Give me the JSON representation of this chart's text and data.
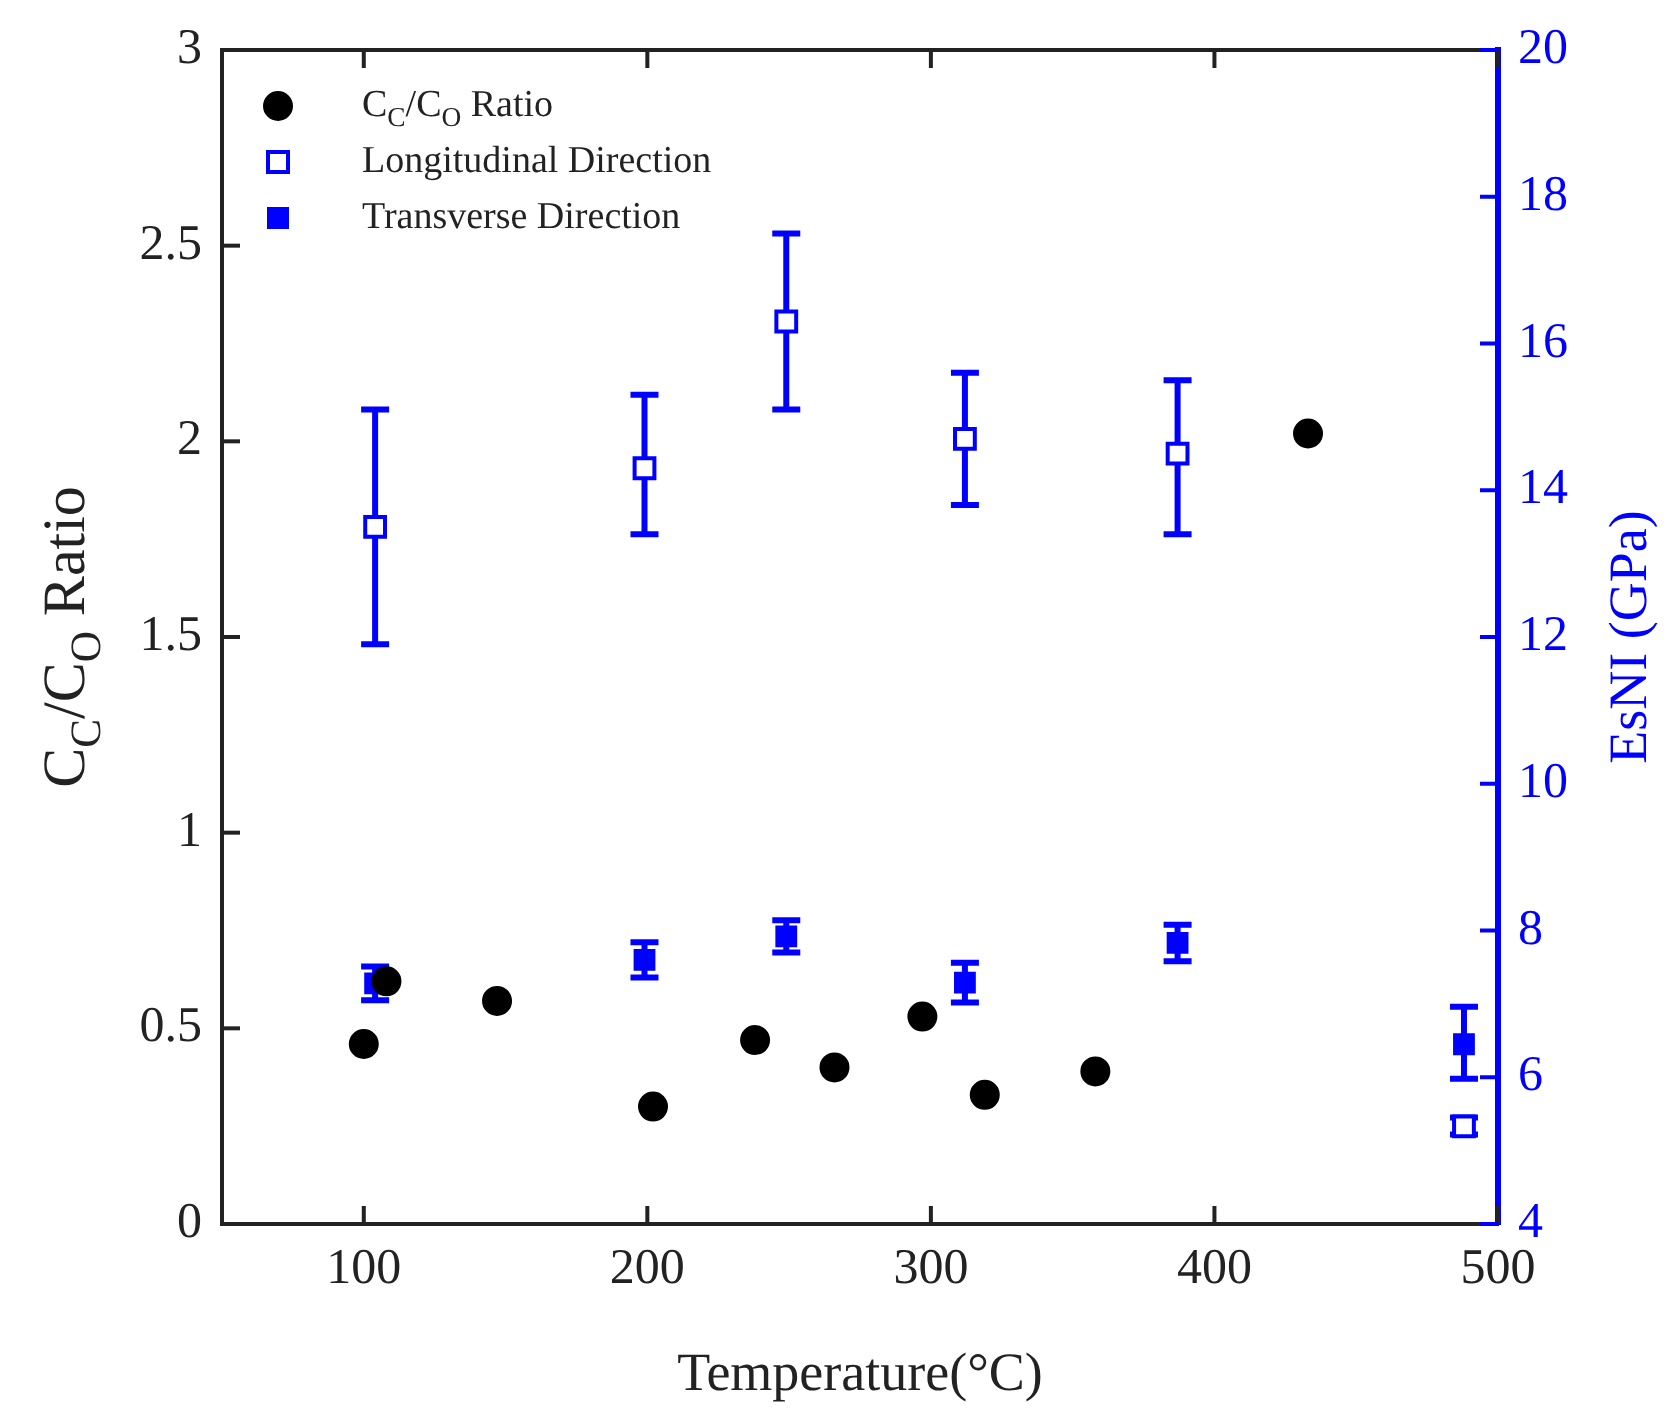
{
  "chart_data": {
    "type": "scatter",
    "xlabel": "Temperature(°C)",
    "ylabel": "C$_{C}$/C$_{O}$ Ratio",
    "y2label": "EsNI (GPa)",
    "xlim": [
      50,
      500
    ],
    "xticks": [
      100,
      200,
      300,
      400,
      500
    ],
    "ylim": [
      0,
      3
    ],
    "yticks": [
      0,
      0.5,
      1,
      1.5,
      2,
      2.5,
      3
    ],
    "y2lim": [
      4,
      20
    ],
    "y2ticks": [
      4,
      6,
      8,
      10,
      12,
      14,
      16,
      18,
      20
    ],
    "legend": "top left",
    "grid": false,
    "series": [
      {
        "name": "C$_{C}$/C$_{O}$ Ratio",
        "color": "#000000",
        "marker": "circle",
        "x": [
          100,
          108,
          147,
          202,
          238,
          266,
          297,
          319,
          358,
          433
        ],
        "values": [
          0.46,
          0.62,
          0.57,
          0.3,
          0.47,
          0.4,
          0.53,
          0.33,
          0.39,
          2.02
        ]
      },
      {
        "name": "Longitudinal Direction",
        "color": "#0000ff",
        "marker": "square",
        "axis": "y2",
        "x": [
          104,
          199,
          249,
          312,
          387,
          488
        ],
        "values": [
          13.5,
          14.3,
          16.3,
          14.7,
          14.5,
          5.33
        ],
        "errors": [
          [
            11.9,
            15.1
          ],
          [
            13.4,
            15.3
          ],
          [
            15.1,
            17.5
          ],
          [
            13.8,
            15.6
          ],
          [
            13.4,
            15.5
          ],
          [
            5.22,
            5.45
          ]
        ]
      },
      {
        "name": "Transverse Direction",
        "color": "#0000ff",
        "marker": "square",
        "axis": "y2",
        "x": [
          104,
          199,
          249,
          312,
          387,
          488
        ],
        "values": [
          7.28,
          7.6,
          7.92,
          7.29,
          7.83,
          6.45
        ],
        "errors": [
          0.23,
          0.24,
          0.22,
          0.27,
          0.25,
          [
            5.98,
            6.96
          ]
        ]
      }
    ]
  }
}
